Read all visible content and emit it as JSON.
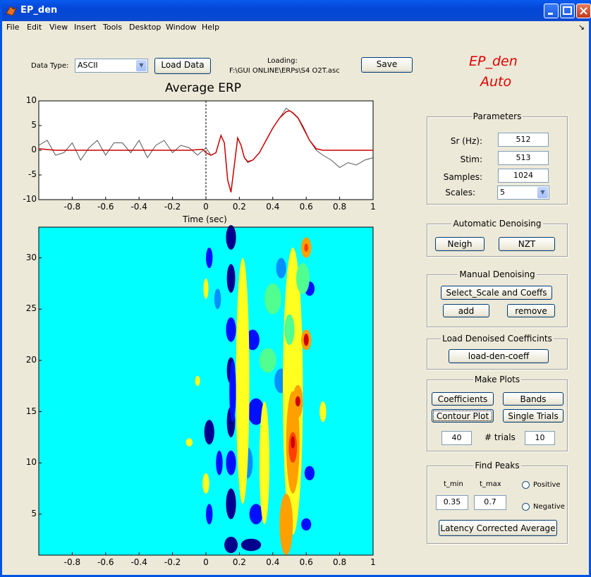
{
  "window": {
    "title": "EP_den"
  },
  "menu": [
    "File",
    "Edit",
    "View",
    "Insert",
    "Tools",
    "Desktop",
    "Window",
    "Help"
  ],
  "controls": {
    "data_type_label": "Data Type:",
    "data_type_value": "ASCII",
    "load_data": "Load Data",
    "loading_label": "Loading:",
    "loading_path": "F:\\GUI  ONLINE\\ERPs\\S4  O2T.asc",
    "save": "Save"
  },
  "app_title": {
    "line1": "EP_den",
    "line2": "Auto"
  },
  "erp_plot": {
    "title": "Average ERP",
    "xlabel": "Time (sec)",
    "yticks": [
      "10",
      "5",
      "0",
      "-5",
      "-10"
    ],
    "xticks": [
      "-0.8",
      "-0.6",
      "-0.4",
      "-0.2",
      "0",
      "0.2",
      "0.4",
      "0.6",
      "0.8",
      "1"
    ]
  },
  "contour_plot": {
    "yticks": [
      "30",
      "25",
      "20",
      "15",
      "10",
      "5"
    ],
    "xticks": [
      "-0.8",
      "-0.6",
      "-0.4",
      "-0.2",
      "0",
      "0.2",
      "0.4",
      "0.6",
      "0.8",
      "1"
    ]
  },
  "parameters": {
    "title": "Parameters",
    "sr_label": "Sr (Hz):",
    "sr_value": "512",
    "stim_label": "Stim:",
    "stim_value": "513",
    "samples_label": "Samples:",
    "samples_value": "1024",
    "scales_label": "Scales:",
    "scales_value": "5"
  },
  "auto_denoise": {
    "title": "Automatic Denoising",
    "neigh": "Neigh",
    "nzt": "NZT"
  },
  "manual_denoise": {
    "title": "Manual Denoising",
    "select": "Select_Scale and Coeffs",
    "add": "add",
    "remove": "remove"
  },
  "load_denoised": {
    "title": "Load Denoised Coefficints",
    "button": "load-den-coeff"
  },
  "make_plots": {
    "title": "Make Plots",
    "coefficients": "Coefficients",
    "bands": "Bands",
    "contour": "Contour Plot",
    "single_trials": "Single Trials",
    "trials_value": "40",
    "trials_label": "# trials",
    "trials_value2": "10"
  },
  "find_peaks": {
    "title": "Find Peaks",
    "tmin_label": "t_min",
    "tmax_label": "t_max",
    "tmin_value": "0.35",
    "tmax_value": "0.7",
    "positive": "Positive",
    "negative": "Negative",
    "latency": "Latency Corrected Average"
  },
  "colors": {
    "titlebar": "#0346d6",
    "accent_red": "#e00000",
    "contour_bg": "#00ffff",
    "erp_red": "#cc0000"
  },
  "chart_data": {
    "type": "line",
    "title": "Average ERP",
    "xlabel": "Time (sec)",
    "ylabel": "",
    "xlim": [
      -1,
      1
    ],
    "ylim": [
      -10,
      10
    ],
    "series": [
      {
        "color": "#cc0000",
        "x": [
          -1,
          -0.9,
          -0.1,
          -0.02,
          0,
          0.03,
          0.06,
          0.09,
          0.11,
          0.13,
          0.15,
          0.17,
          0.19,
          0.21,
          0.23,
          0.25,
          0.28,
          0.32,
          0.36,
          0.4,
          0.44,
          0.48,
          0.5,
          0.52,
          0.55,
          0.58,
          0.62,
          0.66,
          0.7,
          0.75,
          0.8,
          1
        ],
        "y": [
          0.3,
          0,
          0,
          0.2,
          -0.5,
          -1,
          -0.5,
          3,
          1.5,
          -6,
          -8.5,
          -3,
          2.5,
          1,
          -1.5,
          -2.3,
          -2,
          -0.5,
          2,
          4.5,
          6.5,
          7.8,
          8,
          7.6,
          6.6,
          4.8,
          2,
          0.3,
          0,
          0,
          0,
          0
        ]
      },
      {
        "color": "#555555",
        "x": [
          -1,
          -0.95,
          -0.9,
          -0.85,
          -0.8,
          -0.75,
          -0.7,
          -0.65,
          -0.6,
          -0.55,
          -0.5,
          -0.45,
          -0.4,
          -0.35,
          -0.3,
          -0.25,
          -0.2,
          -0.15,
          -0.1,
          -0.05,
          0,
          0.03,
          0.06,
          0.09,
          0.11,
          0.13,
          0.15,
          0.17,
          0.19,
          0.21,
          0.23,
          0.25,
          0.28,
          0.32,
          0.36,
          0.4,
          0.44,
          0.48,
          0.5,
          0.52,
          0.55,
          0.58,
          0.62,
          0.66,
          0.7,
          0.75,
          0.8,
          0.85,
          0.9,
          0.95,
          1
        ],
        "y": [
          1,
          2,
          -1,
          -0.5,
          1.5,
          -2,
          0.5,
          2,
          -1,
          1.5,
          1.5,
          -0.5,
          2,
          -1.5,
          1,
          2,
          -0.5,
          1,
          0.5,
          -1,
          0.5,
          -1,
          -0.5,
          3,
          1.5,
          -6,
          -8.5,
          -3,
          2.5,
          1,
          -1.5,
          -2.5,
          -2,
          -0.5,
          2,
          4.5,
          6.5,
          8.5,
          8,
          7.5,
          6.5,
          4.5,
          2,
          0,
          -1,
          -2,
          -3.5,
          -2.5,
          -3,
          -2,
          -1.5
        ]
      }
    ]
  }
}
